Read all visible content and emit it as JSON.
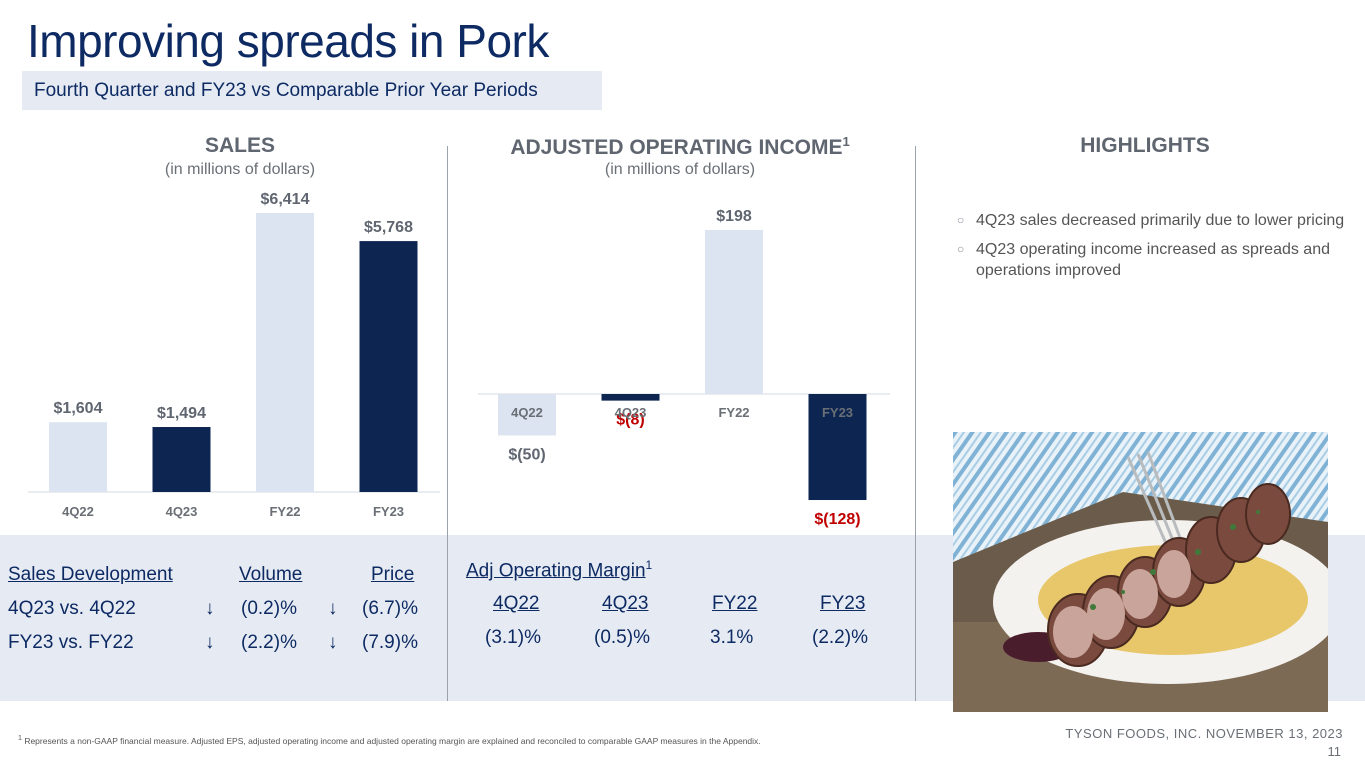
{
  "title": "Improving spreads in Pork",
  "subtitle": "Fourth Quarter and FY23 vs Comparable Prior Year Periods",
  "sales": {
    "heading": "SALES",
    "subheading": "(in millions of dollars)"
  },
  "aoi": {
    "heading": "ADJUSTED OPERATING INCOME",
    "superscript": "1",
    "subheading": "(in millions of dollars)"
  },
  "highlights": {
    "heading": "HIGHLIGHTS",
    "items": [
      "4Q23 sales decreased primarily due to lower pricing",
      "4Q23 operating income increased as spreads and operations improved"
    ]
  },
  "chart_data": [
    {
      "type": "bar",
      "title": "SALES",
      "categories": [
        "4Q22",
        "4Q23",
        "FY22",
        "FY23"
      ],
      "values": [
        1604,
        1494,
        6414,
        5768
      ],
      "labels": [
        "$1,604",
        "$1,494",
        "$6,414",
        "$5,768"
      ],
      "ylim": [
        0,
        6414
      ],
      "colors": [
        "#dbe4f0",
        "#0d2551",
        "#dbe4f0",
        "#0d2551"
      ],
      "label_colors": [
        "#5f6670",
        "#5f6670",
        "#5f6670",
        "#5f6670"
      ]
    },
    {
      "type": "bar",
      "title": "ADJUSTED OPERATING INCOME",
      "categories": [
        "4Q22",
        "4Q23",
        "FY22",
        "FY23"
      ],
      "values": [
        -50,
        -8,
        198,
        -128
      ],
      "labels": [
        "$(50)",
        "$(8)",
        "$198",
        "$(128)"
      ],
      "ylim": [
        -128,
        198
      ],
      "colors": [
        "#dbe4f0",
        "#0d2551",
        "#dbe4f0",
        "#0d2551"
      ],
      "label_colors": [
        "#5f6670",
        "#c00000",
        "#5f6670",
        "#c00000"
      ]
    }
  ],
  "sales_development": {
    "header": "Sales Development",
    "volume_header": "Volume",
    "price_header": "Price",
    "arrow": "↓",
    "rows": [
      {
        "label": "4Q23 vs. 4Q22",
        "volume": "(0.2)%",
        "price": "(6.7)%"
      },
      {
        "label": "FY23 vs. FY22",
        "volume": "(2.2)%",
        "price": "(7.9)%"
      }
    ]
  },
  "margin": {
    "header": "Adj Operating Margin",
    "superscript": "1",
    "periods": [
      "4Q22",
      "4Q23",
      "FY22",
      "FY23"
    ],
    "values": [
      "(3.1)%",
      "(0.5)%",
      "3.1%",
      "(2.2)%"
    ]
  },
  "footnote": {
    "superscript": "1",
    "text": "Represents a non-GAAP financial measure. Adjusted EPS, adjusted operating income and adjusted operating margin are explained and reconciled to comparable GAAP measures in the Appendix."
  },
  "footer": "TYSON FOODS, INC. NOVEMBER 13, 2023",
  "page_number": "11",
  "colors": {
    "navy": "#0d2551",
    "light": "#dbe4f0",
    "negative": "#c00000",
    "band": "#e6ebf3"
  },
  "photo_icon": "pork-tenderloin-plate-photo"
}
